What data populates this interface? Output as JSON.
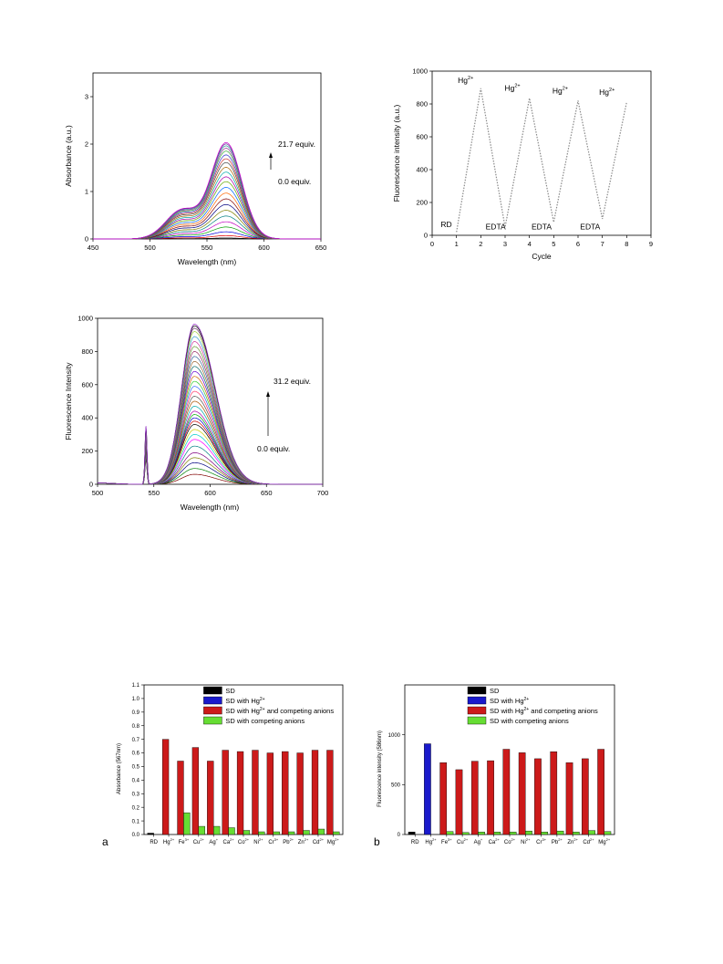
{
  "chart_data": [
    {
      "id": "absorbance",
      "type": "line",
      "xlabel": "Wavelength (nm)",
      "ylabel": "Absorbance (a.u.)",
      "xlim": [
        450,
        650
      ],
      "ylim": [
        0,
        3.5
      ],
      "xticks": [
        "450",
        "500",
        "550",
        "600",
        "650"
      ],
      "yticks": [
        "0",
        "1",
        "2",
        "3"
      ],
      "annotations": [
        "21.7 equiv.",
        "0.0 equiv."
      ],
      "peak_nm": 567,
      "shoulder_nm": 528,
      "curve_peaks": [
        0.02,
        0.07,
        0.15,
        0.25,
        0.36,
        0.48,
        0.6,
        0.72,
        0.84,
        0.96,
        1.08,
        1.2,
        1.3,
        1.4,
        1.5,
        1.6,
        1.68,
        1.76,
        1.84,
        1.9,
        1.95,
        1.99,
        2.02
      ],
      "colors": [
        "#000000",
        "#e00000",
        "#0000e0",
        "#00a000",
        "#c000c0",
        "#008080",
        "#808000",
        "#000080",
        "#800000",
        "#ff6600",
        "#0066ff",
        "#66aa00",
        "#aa00aa",
        "#00aaaa",
        "#aa6600",
        "#444444",
        "#cc3333",
        "#3333cc",
        "#33aa33",
        "#993399",
        "#339999",
        "#663399",
        "#cc00cc"
      ]
    },
    {
      "id": "cycle",
      "type": "line",
      "xlabel": "Cycle",
      "ylabel": "Fluorescence intensity (a.u.)",
      "xlim": [
        0,
        9
      ],
      "ylim": [
        0,
        1000
      ],
      "xticks": [
        "0",
        "1",
        "2",
        "3",
        "4",
        "5",
        "6",
        "7",
        "8",
        "9"
      ],
      "yticks": [
        "0",
        "200",
        "400",
        "600",
        "800",
        "1000"
      ],
      "x": [
        1,
        2,
        3,
        4,
        5,
        6,
        7,
        8
      ],
      "y": [
        20,
        895,
        50,
        835,
        80,
        820,
        100,
        810
      ],
      "labels": {
        "rd": "RD",
        "hg": "Hg",
        "hg_sup": "2+",
        "edta": "EDTA"
      }
    },
    {
      "id": "fluorescence",
      "type": "line",
      "xlabel": "Wavelength (nm)",
      "ylabel": "Fluorescence Intensity",
      "xlim": [
        500,
        700
      ],
      "ylim": [
        0,
        1000
      ],
      "xticks": [
        "500",
        "550",
        "600",
        "650",
        "700"
      ],
      "yticks": [
        "0",
        "200",
        "400",
        "600",
        "800",
        "1000"
      ],
      "annotations": [
        "31.2 equiv.",
        "0.0 equiv."
      ],
      "peak_nm": 586,
      "scatter_nm": 543,
      "curve_peaks": [
        60,
        95,
        130,
        160,
        190,
        230,
        270,
        300,
        330,
        360,
        380,
        400,
        420,
        440,
        470,
        500,
        530,
        560,
        590,
        620,
        650,
        680,
        710,
        740,
        770,
        800,
        830,
        860,
        890,
        920,
        940,
        955,
        965
      ],
      "colors": [
        "#800000",
        "#008000",
        "#000080",
        "#808000",
        "#800080",
        "#008080",
        "#ff00ff",
        "#00cccc",
        "#cccc00",
        "#000000",
        "#cc0000",
        "#0000cc",
        "#00aa00",
        "#aa00aa",
        "#00aaaa",
        "#aa5500",
        "#555555",
        "#ff3366",
        "#3366ff",
        "#33cc33",
        "#cc6600",
        "#6600cc",
        "#006666",
        "#996633",
        "#336699",
        "#993366",
        "#669933",
        "#cc3399",
        "#3399cc",
        "#99cc33",
        "#663366",
        "#000000",
        "#9933cc"
      ]
    },
    {
      "id": "abs-bars",
      "type": "bar",
      "panel": "a",
      "ylabel": "Absorbance (567nm)",
      "ylim": [
        0,
        1.1
      ],
      "yticks": [
        "0.0",
        "0.1",
        "0.2",
        "0.3",
        "0.4",
        "0.5",
        "0.6",
        "0.7",
        "0.8",
        "0.9",
        "1.0",
        "1.1"
      ],
      "categories": [
        {
          "base": "RD",
          "sup": ""
        },
        {
          "base": "Hg",
          "sup": "2+"
        },
        {
          "base": "Fe",
          "sup": "3+"
        },
        {
          "base": "Cu",
          "sup": "2+"
        },
        {
          "base": "Ag",
          "sup": "+"
        },
        {
          "base": "Ca",
          "sup": "2+"
        },
        {
          "base": "Co",
          "sup": "2+"
        },
        {
          "base": "Ni",
          "sup": "2+"
        },
        {
          "base": "Cr",
          "sup": "3+"
        },
        {
          "base": "Pb",
          "sup": "2+"
        },
        {
          "base": "Zn",
          "sup": "2+"
        },
        {
          "base": "Cd",
          "sup": "2+"
        },
        {
          "base": "Mg",
          "sup": "2+"
        }
      ],
      "legend": [
        {
          "text": "SD",
          "sup": "",
          "after": "",
          "color": "#000000"
        },
        {
          "text": "SD with Hg",
          "sup": "2+",
          "after": "",
          "color": "#1a1acc"
        },
        {
          "text": "SD with Hg",
          "sup": "2+",
          "after": " and competing anions",
          "color": "#cc1a1a"
        },
        {
          "text": "SD with competing anions",
          "sup": "",
          "after": "",
          "color": "#66dd33"
        }
      ],
      "series": [
        {
          "color": "#000000",
          "values": [
            0.01,
            null,
            null,
            null,
            null,
            null,
            null,
            null,
            null,
            null,
            null,
            null,
            null
          ]
        },
        {
          "color": "#1a1acc",
          "values": [
            null,
            null,
            null,
            null,
            null,
            null,
            null,
            null,
            null,
            null,
            null,
            null,
            null
          ]
        },
        {
          "color": "#cc1a1a",
          "values": [
            null,
            0.7,
            0.54,
            0.64,
            0.54,
            0.62,
            0.61,
            0.62,
            0.6,
            0.61,
            0.6,
            0.62,
            0.62
          ]
        },
        {
          "color": "#66dd33",
          "values": [
            null,
            null,
            0.16,
            0.06,
            0.06,
            0.05,
            0.03,
            0.02,
            0.02,
            0.02,
            0.03,
            0.04,
            0.02
          ]
        }
      ]
    },
    {
      "id": "fl-bars",
      "type": "bar",
      "panel": "b",
      "ylabel": "Fluorescence intensity (586nm)",
      "ylim": [
        0,
        1500
      ],
      "yticks": [
        "0",
        "500",
        "1000"
      ],
      "categories": [
        {
          "base": "RD",
          "sup": ""
        },
        {
          "base": "Hg",
          "sup": "2+"
        },
        {
          "base": "Fe",
          "sup": "3+"
        },
        {
          "base": "Cu",
          "sup": "2+"
        },
        {
          "base": "Ag",
          "sup": "+"
        },
        {
          "base": "Ca",
          "sup": "2+"
        },
        {
          "base": "Co",
          "sup": "2+"
        },
        {
          "base": "Ni",
          "sup": "2+"
        },
        {
          "base": "Cr",
          "sup": "3+"
        },
        {
          "base": "Pb",
          "sup": "2+"
        },
        {
          "base": "Zn",
          "sup": "2+"
        },
        {
          "base": "Cd",
          "sup": "2+"
        },
        {
          "base": "Mg",
          "sup": "2+"
        }
      ],
      "legend": [
        {
          "text": "SD",
          "sup": "",
          "after": "",
          "color": "#000000"
        },
        {
          "text": "SD with Hg",
          "sup": "2+",
          "after": "",
          "color": "#1a1acc"
        },
        {
          "text": "SD with Hg",
          "sup": "2+",
          "after": " and competing anions",
          "color": "#cc1a1a"
        },
        {
          "text": "SD with competing anions",
          "sup": "",
          "after": "",
          "color": "#66dd33"
        }
      ],
      "series": [
        {
          "color": "#000000",
          "values": [
            25,
            null,
            null,
            null,
            null,
            null,
            null,
            null,
            null,
            null,
            null,
            null,
            null
          ]
        },
        {
          "color": "#1a1acc",
          "values": [
            null,
            910,
            null,
            null,
            null,
            null,
            null,
            null,
            null,
            null,
            null,
            null,
            null
          ]
        },
        {
          "color": "#cc1a1a",
          "values": [
            null,
            null,
            720,
            650,
            735,
            740,
            855,
            820,
            760,
            830,
            720,
            760,
            855
          ]
        },
        {
          "color": "#66dd33",
          "values": [
            null,
            null,
            30,
            20,
            25,
            25,
            25,
            35,
            25,
            35,
            25,
            40,
            30
          ]
        }
      ]
    }
  ]
}
